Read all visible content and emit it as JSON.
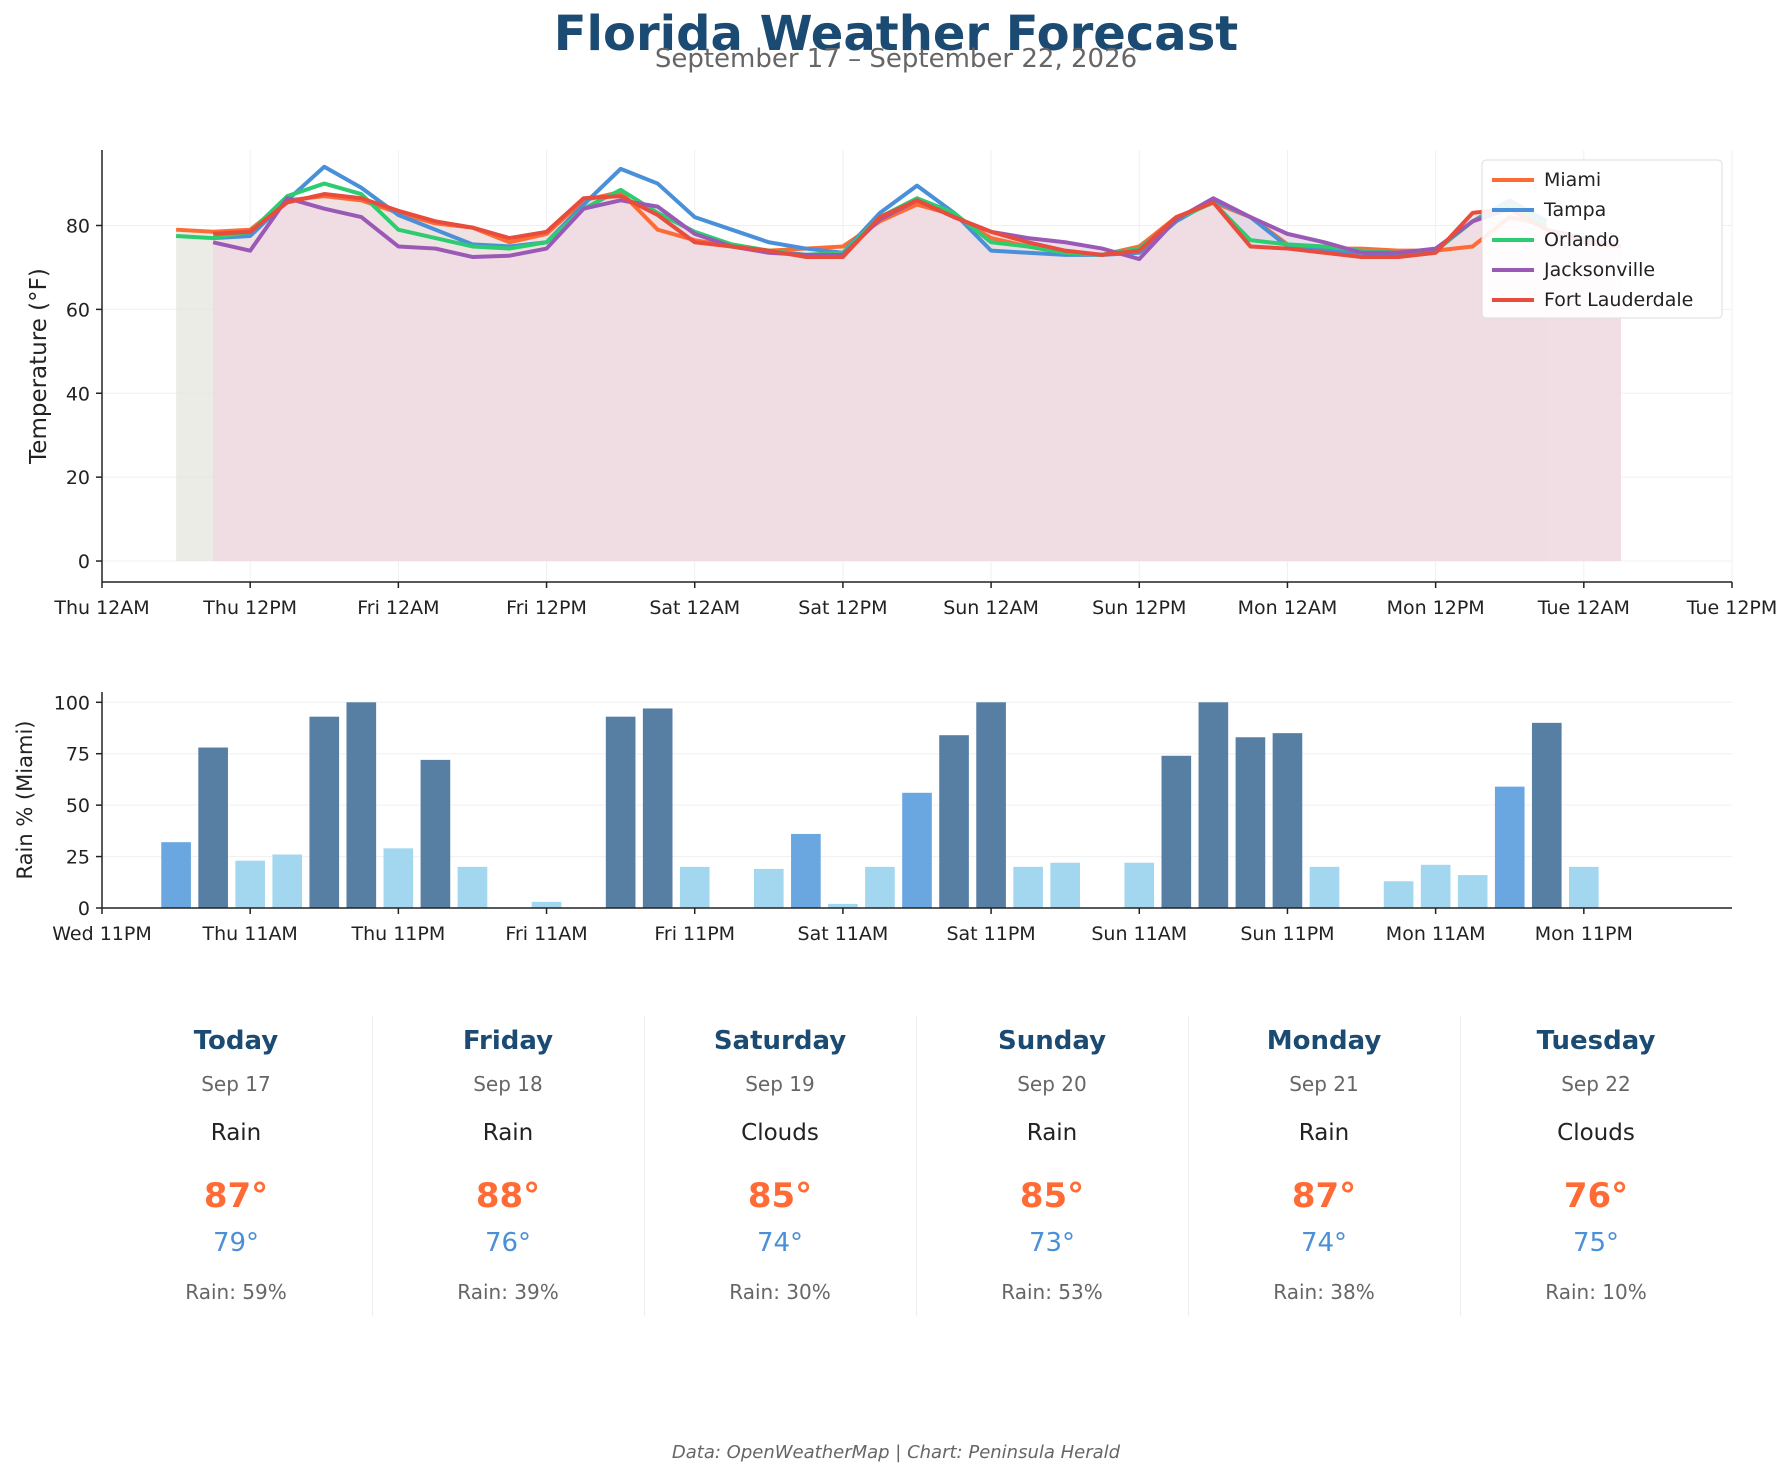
{
  "header": {
    "title": "Florida Weather Forecast",
    "subtitle": "September 17 – September 22, 2026"
  },
  "colors": {
    "title": "#1b4b72",
    "high_temp": "#ff6b35",
    "low_temp": "#4a90d9",
    "rain_high": "#567fa3",
    "rain_mid": "#6aa6e0",
    "rain_low": "#a3d7ef"
  },
  "chart_data": [
    {
      "type": "line",
      "ylabel": "Temperature (°F)",
      "ylim": [
        -5,
        98
      ],
      "yticks": [
        0,
        20,
        40,
        60,
        80
      ],
      "x_axis": {
        "range_hours_from_thu_12am": [
          0,
          132
        ],
        "tick_labels": [
          "Thu 12AM",
          "Thu 12PM",
          "Fri 12AM",
          "Fri 12PM",
          "Sat 12AM",
          "Sat 12PM",
          "Sun 12AM",
          "Sun 12PM",
          "Mon 12AM",
          "Mon 12PM",
          "Tue 12AM",
          "Tue 12PM"
        ]
      },
      "grid": true,
      "legend": "top-right",
      "series": [
        {
          "name": "Miami",
          "color": "#ff6b35",
          "fill": "#e3e6dc",
          "x": [
            6,
            9,
            12,
            15,
            18,
            21,
            24,
            27,
            30,
            33,
            36,
            39,
            42,
            45,
            48,
            51,
            54,
            57,
            60,
            63,
            66,
            69,
            72,
            75,
            78,
            81,
            84,
            87,
            90,
            93,
            96,
            99,
            102,
            105,
            108,
            111,
            114,
            117
          ],
          "values": [
            79,
            78.5,
            79,
            86,
            87,
            86,
            83,
            80.5,
            79.5,
            76,
            78,
            86,
            88,
            79,
            76.5,
            75,
            74,
            74.5,
            75,
            81,
            85,
            82.5,
            77,
            75,
            73.5,
            73,
            75,
            82,
            85.5,
            82,
            75.5,
            74.5,
            74.5,
            74,
            74,
            75,
            82,
            80
          ]
        },
        {
          "name": "Tampa",
          "color": "#4a90d9",
          "fill": null,
          "x": [
            9,
            12,
            15,
            18,
            21,
            24,
            27,
            30,
            33,
            36,
            39,
            42,
            45,
            48,
            51,
            54,
            57,
            60,
            63,
            66,
            69,
            72,
            75,
            78,
            81,
            84,
            87,
            90,
            93,
            96,
            99,
            102,
            105,
            108,
            111,
            114,
            117
          ],
          "values": [
            77,
            77.5,
            86,
            94,
            89,
            82.5,
            79,
            75.5,
            75,
            76,
            85,
            93.5,
            90,
            82,
            79,
            76,
            74.5,
            73.5,
            83,
            89.5,
            83,
            74,
            73.5,
            73,
            73,
            73.5,
            81,
            86,
            82,
            75,
            74,
            73.5,
            73,
            74,
            81,
            86,
            81
          ]
        },
        {
          "name": "Orlando",
          "color": "#2ecc71",
          "fill": null,
          "x": [
            6,
            9,
            12,
            15,
            18,
            21,
            24,
            27,
            30,
            33,
            36,
            39,
            42,
            45,
            48,
            51,
            54,
            57,
            60,
            63,
            66,
            69,
            72,
            75,
            78,
            81,
            84,
            87,
            90,
            93,
            96,
            99,
            102,
            105,
            108,
            111,
            114,
            117
          ],
          "values": [
            77.5,
            77,
            78.5,
            87,
            90,
            87.5,
            79,
            77,
            75,
            74.5,
            76,
            84,
            88.5,
            83,
            78.5,
            75.5,
            74,
            73,
            73.5,
            82,
            86.5,
            83,
            76,
            75,
            73.5,
            73,
            74.5,
            81.5,
            85.5,
            76.5,
            75.5,
            75,
            74,
            73.5,
            74,
            81,
            85,
            80
          ]
        },
        {
          "name": "Jacksonville",
          "color": "#9b59b6",
          "fill": "#e4d3e6",
          "x": [
            9,
            12,
            15,
            18,
            21,
            24,
            27,
            30,
            33,
            36,
            39,
            42,
            45,
            48,
            51,
            54,
            57,
            60,
            63,
            66,
            69,
            72,
            75,
            78,
            81,
            84,
            87,
            90,
            93,
            96,
            99,
            102,
            105,
            108,
            111,
            114,
            117,
            120,
            123
          ],
          "values": [
            76,
            74,
            86.5,
            84,
            82,
            75,
            74.5,
            72.5,
            72.8,
            74.5,
            84,
            86,
            84.5,
            78,
            75,
            73.5,
            73,
            73,
            81.5,
            86,
            82,
            78.5,
            77,
            76,
            74.5,
            72,
            81.5,
            86.5,
            82,
            78,
            76,
            73.5,
            73.5,
            74.5,
            81,
            84,
            79,
            77,
            75
          ]
        },
        {
          "name": "Fort Lauderdale",
          "color": "#e74c3c",
          "fill": "#f1dde2",
          "x": [
            9,
            12,
            15,
            18,
            21,
            24,
            27,
            30,
            33,
            36,
            39,
            42,
            45,
            48,
            51,
            54,
            57,
            60,
            63,
            66,
            69,
            72,
            75,
            78,
            81,
            84,
            87,
            90,
            93,
            96,
            99,
            102,
            105,
            108,
            111,
            114,
            117,
            120,
            123
          ],
          "values": [
            78,
            78.5,
            85.5,
            87.5,
            86.5,
            83.5,
            81,
            79.5,
            77,
            78.5,
            86.5,
            87,
            82.5,
            76,
            75,
            74,
            72.5,
            72.5,
            82,
            86,
            82,
            78.5,
            76,
            74,
            73,
            74,
            82,
            85.5,
            75,
            74.5,
            73.5,
            72.5,
            72.5,
            73.5,
            83,
            84,
            79,
            76,
            75
          ]
        }
      ]
    },
    {
      "type": "bar",
      "ylabel": "Rain % (Miami)",
      "ylim": [
        0,
        105
      ],
      "yticks": [
        0,
        25,
        50,
        75,
        100
      ],
      "x_axis": {
        "range_hours_from_wed_11pm": [
          0,
          132
        ],
        "tick_labels": [
          "Wed 11PM",
          "Thu 11AM",
          "Thu 11PM",
          "Fri 11AM",
          "Fri 11PM",
          "Sat 11AM",
          "Sat 11PM",
          "Sun 11AM",
          "Sun 11PM",
          "Mon 11AM",
          "Mon 11PM"
        ]
      },
      "bar_x": [
        6,
        9,
        12,
        15,
        18,
        21,
        24,
        27,
        30,
        33,
        36,
        39,
        42,
        45,
        48,
        51,
        54,
        57,
        60,
        63,
        66,
        69,
        72,
        75,
        78,
        81,
        84,
        87,
        90,
        93,
        96,
        99,
        102,
        105,
        108,
        111,
        114,
        117,
        120,
        123
      ],
      "values": [
        32,
        78,
        23,
        26,
        93,
        100,
        29,
        72,
        20,
        0,
        3,
        0,
        93,
        97,
        20,
        0,
        19,
        36,
        2,
        20,
        56,
        84,
        100,
        20,
        22,
        0,
        22,
        74,
        100,
        83,
        85,
        20,
        0,
        13,
        21,
        16,
        59,
        90,
        20,
        0
      ]
    }
  ],
  "forecast": [
    {
      "day": "Today",
      "date": "Sep 17",
      "condition": "Rain",
      "high": "87°",
      "low": "79°",
      "rain": "Rain: 59%"
    },
    {
      "day": "Friday",
      "date": "Sep 18",
      "condition": "Rain",
      "high": "88°",
      "low": "76°",
      "rain": "Rain: 39%"
    },
    {
      "day": "Saturday",
      "date": "Sep 19",
      "condition": "Clouds",
      "high": "85°",
      "low": "74°",
      "rain": "Rain: 30%"
    },
    {
      "day": "Sunday",
      "date": "Sep 20",
      "condition": "Rain",
      "high": "85°",
      "low": "73°",
      "rain": "Rain: 53%"
    },
    {
      "day": "Monday",
      "date": "Sep 21",
      "condition": "Rain",
      "high": "87°",
      "low": "74°",
      "rain": "Rain: 38%"
    },
    {
      "day": "Tuesday",
      "date": "Sep 22",
      "condition": "Clouds",
      "high": "76°",
      "low": "75°",
      "rain": "Rain: 10%"
    }
  ],
  "footer": {
    "source": "Data: OpenWeatherMap | Chart: Peninsula Herald"
  }
}
